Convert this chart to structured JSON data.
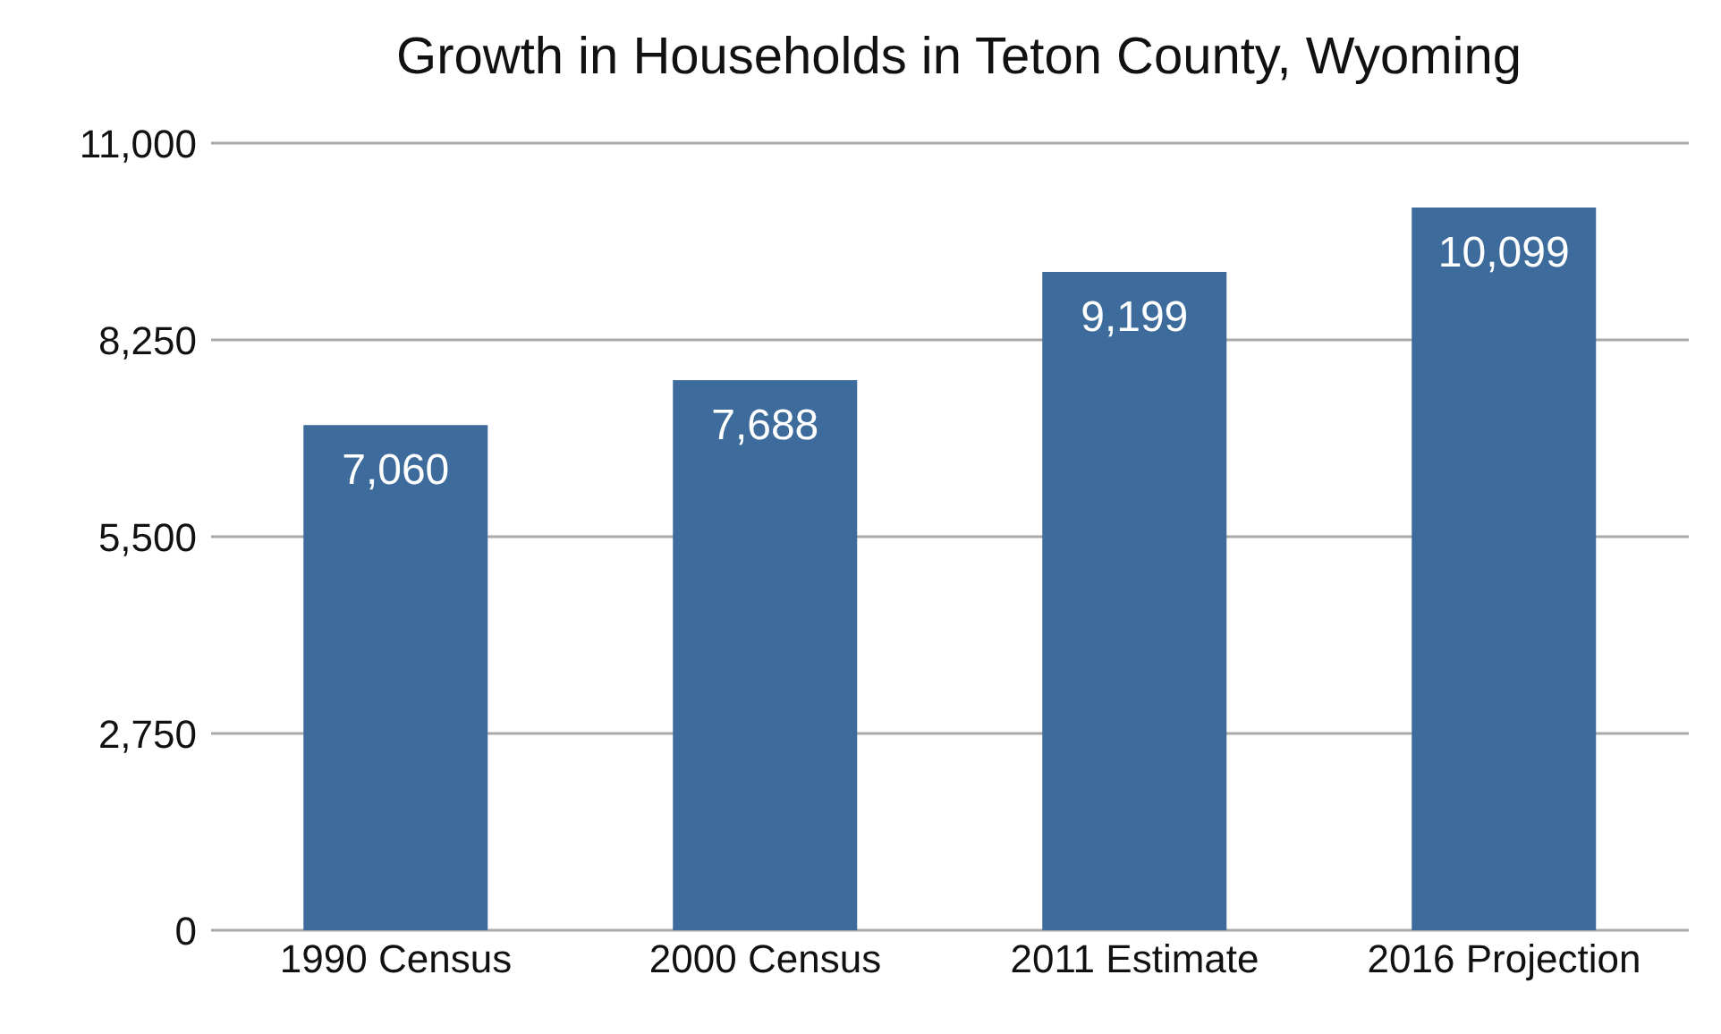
{
  "chart_data": {
    "type": "bar",
    "title": "Growth in Households in Teton County, Wyoming",
    "categories": [
      "1990 Census",
      "2000 Census",
      "2011 Estimate",
      "2016 Projection"
    ],
    "values": [
      7060,
      7688,
      9199,
      10099
    ],
    "color": "#3d6b9c",
    "ylim": [
      0,
      11000
    ],
    "yticks": [
      {
        "value": 0,
        "label": "0"
      },
      {
        "value": 2750,
        "label": "2,750"
      },
      {
        "value": 5500,
        "label": "5,500"
      },
      {
        "value": 8250,
        "label": "8,250"
      },
      {
        "value": 11000,
        "label": "11,000"
      }
    ],
    "value_labels": [
      "7,060",
      "7,688",
      "9,199",
      "10,099"
    ],
    "grid": "y"
  }
}
